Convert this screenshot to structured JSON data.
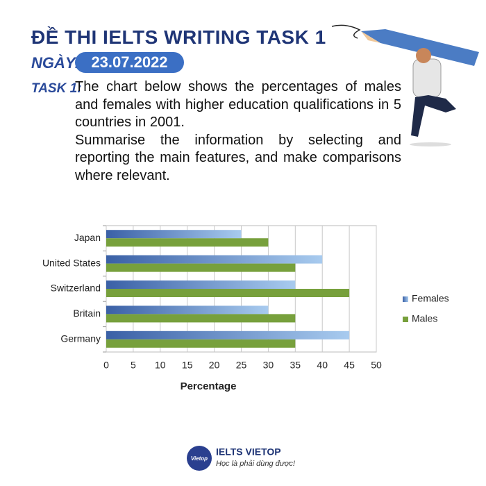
{
  "header": {
    "title": "ĐỀ THI IELTS WRITING TASK 1",
    "date_label": "NGÀY:",
    "date": "23.07.2022"
  },
  "task": {
    "label": "TASK 1:",
    "paragraphs": [
      "The chart below shows the percentages of males and females with higher education qualifications in 5 countries in 2001.",
      "Summarise the information by selecting and reporting the main features, and make comparisons where relevant."
    ]
  },
  "chart_data": {
    "type": "bar",
    "orientation": "horizontal",
    "x_label": "Percentage",
    "categories": [
      "Japan",
      "United States",
      "Switzerland",
      "Britain",
      "Germany"
    ],
    "series": [
      {
        "name": "Females",
        "color": "#4a73b5",
        "values": [
          25,
          40,
          35,
          30,
          45
        ]
      },
      {
        "name": "Males",
        "color": "#77a03c",
        "values": [
          30,
          35,
          45,
          35,
          35
        ]
      }
    ],
    "xlim": [
      0,
      50
    ],
    "xticks": [
      0,
      5,
      10,
      15,
      20,
      25,
      30,
      35,
      40,
      45,
      50
    ],
    "grid": true,
    "legend": "right"
  },
  "footer": {
    "logo": "Vietop",
    "brand": "IELTS VIETOP",
    "slogan": "Học là phải dùng được!"
  }
}
